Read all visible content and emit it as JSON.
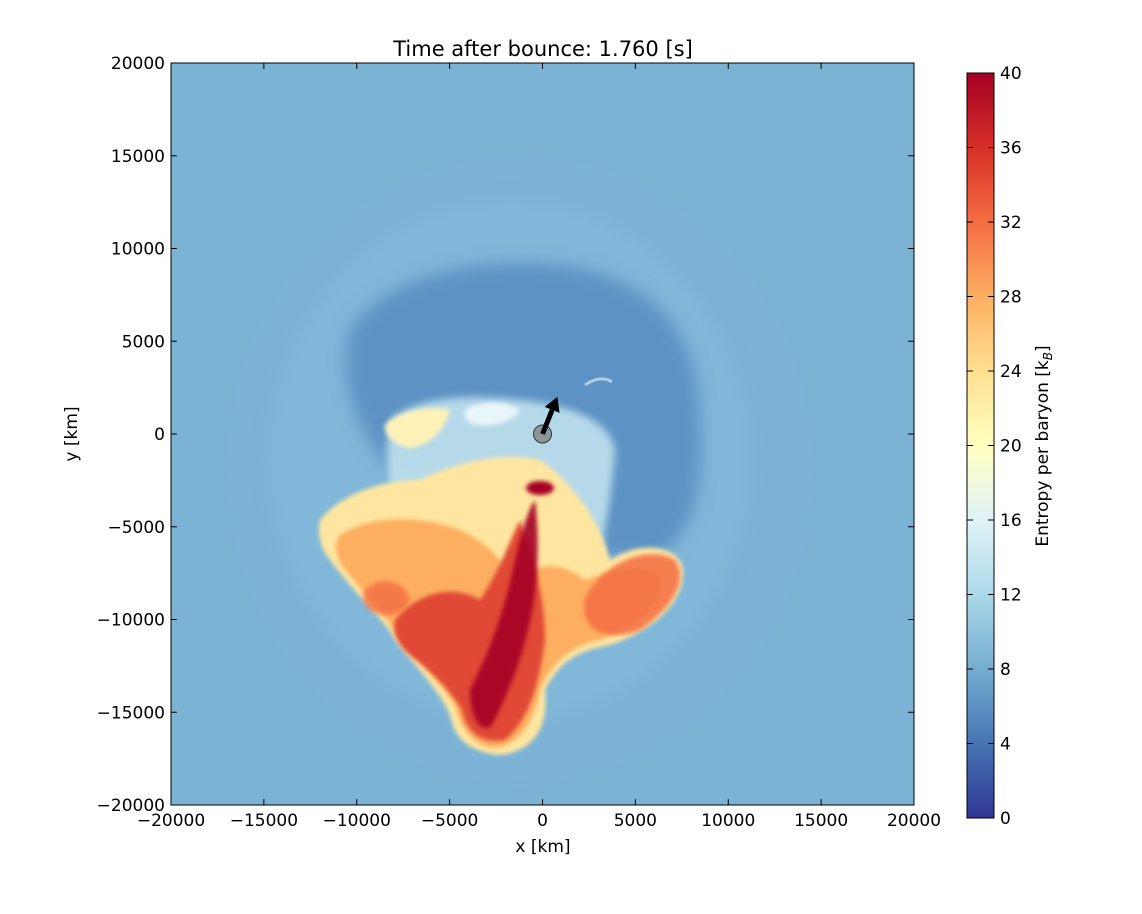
{
  "chart_data": {
    "type": "heatmap",
    "title": "Time after bounce: 1.760 [s]",
    "xlabel": "x [km]",
    "ylabel": "y [km]",
    "xlim": [
      -20000,
      20000
    ],
    "ylim": [
      -20000,
      20000
    ],
    "x_ticks": [
      -20000,
      -15000,
      -10000,
      -5000,
      0,
      5000,
      10000,
      15000,
      20000
    ],
    "y_ticks": [
      -20000,
      -15000,
      -10000,
      -5000,
      0,
      5000,
      10000,
      15000,
      20000
    ],
    "x_tick_labels": [
      "−20000",
      "−15000",
      "−10000",
      "−5000",
      "0",
      "5000",
      "10000",
      "15000",
      "20000"
    ],
    "y_tick_labels": [
      "−20000",
      "−15000",
      "−10000",
      "−5000",
      "0",
      "5000",
      "10000",
      "15000",
      "20000"
    ],
    "colorbar": {
      "label": "Entropy per baryon [k",
      "label_sub": "B",
      "label_end": "]",
      "range": [
        0,
        40
      ],
      "ticks": [
        0,
        4,
        8,
        12,
        16,
        20,
        24,
        28,
        32,
        36,
        40
      ],
      "tick_labels": [
        "0",
        "4",
        "8",
        "12",
        "16",
        "20",
        "24",
        "28",
        "32",
        "36",
        "40"
      ],
      "colormap": "RdYlBu_r",
      "stops": [
        "#313695",
        "#4575b4",
        "#74add1",
        "#abd9e9",
        "#e0f3f8",
        "#ffffbf",
        "#fee090",
        "#fdae61",
        "#f46d43",
        "#d73027",
        "#a50026"
      ]
    },
    "background_entropy": 8.5,
    "marker": {
      "x": 0,
      "y": 0
    },
    "arrow": {
      "from": [
        0,
        0
      ],
      "to": [
        800,
        2000
      ]
    },
    "grid": false
  }
}
